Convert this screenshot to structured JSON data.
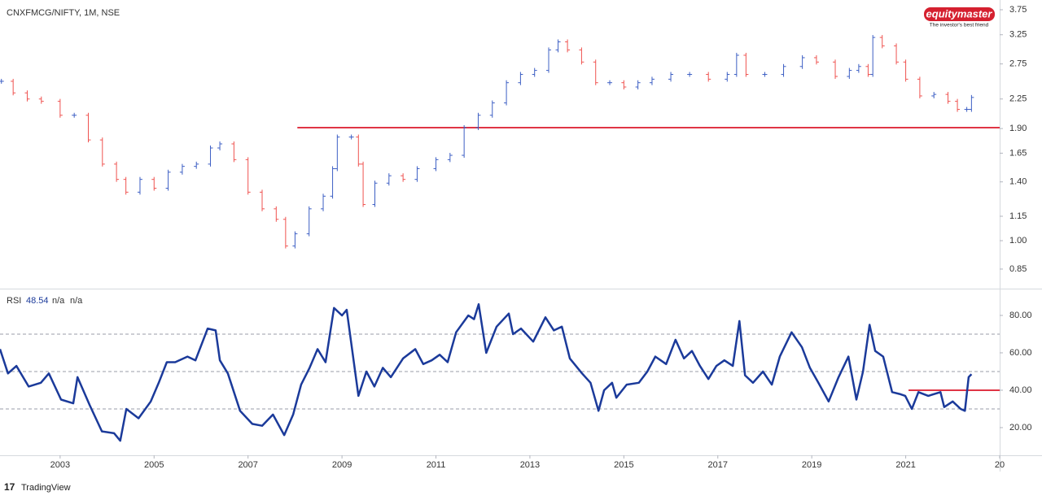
{
  "chart_data": [
    {
      "type": "ohlc",
      "title": "CNXFMCG/NIFTY, 1M, NSE",
      "log": true,
      "ylim": [
        0.76,
        3.965
      ],
      "yticks": [
        3.75,
        3.25,
        2.75,
        2.25,
        {
          "value": 1.9,
          "label": "1.90"
        },
        1.65,
        {
          "value": 1.4,
          "label": "1.40"
        },
        1.15,
        {
          "value": 1.0,
          "label": "1.00"
        },
        0.85
      ],
      "xlim": [
        2001.72,
        2023.0
      ],
      "up_color": "#3d5fc4",
      "down_color": "#ef5350",
      "levels": [
        {
          "value": 1.91,
          "x_start": 2008.05,
          "color": "#e03545"
        }
      ],
      "series": [
        {
          "name": "CNXFMCG/NIFTY",
          "x": [
            2001.75,
            2002.0,
            2002.3,
            2002.6,
            2003.0,
            2003.3,
            2003.6,
            2003.9,
            2004.2,
            2004.4,
            2004.7,
            2005.0,
            2005.3,
            2005.6,
            2005.9,
            2006.2,
            2006.4,
            2006.7,
            2007.0,
            2007.3,
            2007.6,
            2007.8,
            2008.0,
            2008.3,
            2008.6,
            2008.8,
            2008.9,
            2009.2,
            2009.35,
            2009.45,
            2009.7,
            2010.0,
            2010.3,
            2010.6,
            2011.0,
            2011.3,
            2011.6,
            2011.9,
            2012.2,
            2012.5,
            2012.8,
            2013.1,
            2013.4,
            2013.6,
            2013.8,
            2014.1,
            2014.4,
            2014.7,
            2015.0,
            2015.3,
            2015.6,
            2016.0,
            2016.4,
            2016.8,
            2017.2,
            2017.4,
            2017.6,
            2018.0,
            2018.4,
            2018.8,
            2019.1,
            2019.5,
            2019.8,
            2020.0,
            2020.2,
            2020.3,
            2020.5,
            2020.8,
            2021.0,
            2021.3,
            2021.6,
            2021.9,
            2022.1,
            2022.3,
            2022.4
          ],
          "values": [
            2.49,
            2.33,
            2.25,
            2.22,
            2.05,
            2.05,
            1.78,
            1.55,
            1.42,
            1.32,
            1.42,
            1.35,
            1.48,
            1.53,
            1.55,
            1.7,
            1.74,
            1.59,
            1.32,
            1.2,
            1.13,
            0.97,
            1.04,
            1.2,
            1.29,
            1.51,
            1.81,
            1.81,
            1.55,
            1.23,
            1.39,
            1.45,
            1.42,
            1.51,
            1.59,
            1.63,
            1.91,
            2.05,
            2.2,
            2.47,
            2.59,
            2.65,
            2.98,
            3.12,
            2.98,
            2.78,
            2.47,
            2.47,
            2.41,
            2.47,
            2.52,
            2.59,
            2.59,
            2.52,
            2.59,
            2.89,
            2.59,
            2.59,
            2.71,
            2.85,
            2.78,
            2.56,
            2.65,
            2.71,
            2.59,
            3.2,
            3.05,
            2.78,
            2.52,
            2.29,
            2.31,
            2.22,
            2.12,
            2.12,
            2.27
          ]
        }
      ]
    },
    {
      "type": "line",
      "title": "RSI",
      "legend_values": [
        48.54,
        "n/a",
        "n/a"
      ],
      "ylim": [
        5.2,
        93.9
      ],
      "yticks": [
        {
          "value": 80,
          "label": "80.00"
        },
        {
          "value": 60,
          "label": "60.00"
        },
        {
          "value": 40,
          "label": "40.00"
        },
        {
          "value": 20,
          "label": "20.00"
        }
      ],
      "hlines": [
        70,
        50,
        30
      ],
      "xlim": [
        2001.72,
        2023.0
      ],
      "xticks": [
        2003,
        2005,
        2007,
        2009,
        2011,
        2013,
        2015,
        2017,
        2019,
        2021,
        {
          "value": 2023,
          "label": "20"
        }
      ],
      "levels": [
        {
          "value": 40,
          "x_start": 2021.06,
          "color": "#e03545"
        }
      ],
      "series": [
        {
          "name": "RSI",
          "color": "#1b3a9a",
          "x": [
            2001.72,
            2001.89,
            2002.07,
            2002.33,
            2002.59,
            2002.76,
            2003.02,
            2003.28,
            2003.37,
            2003.63,
            2003.89,
            2004.15,
            2004.28,
            2004.41,
            2004.67,
            2004.93,
            2005.1,
            2005.27,
            2005.45,
            2005.71,
            2005.88,
            2006.14,
            2006.31,
            2006.4,
            2006.57,
            2006.83,
            2007.09,
            2007.3,
            2007.53,
            2007.77,
            2007.96,
            2008.13,
            2008.31,
            2008.48,
            2008.65,
            2008.83,
            2009.0,
            2009.1,
            2009.35,
            2009.52,
            2009.69,
            2009.87,
            2010.04,
            2010.3,
            2010.56,
            2010.73,
            2010.91,
            2011.08,
            2011.25,
            2011.43,
            2011.69,
            2011.81,
            2011.91,
            2012.07,
            2012.29,
            2012.55,
            2012.64,
            2012.81,
            2013.07,
            2013.33,
            2013.51,
            2013.68,
            2013.85,
            2014.11,
            2014.29,
            2014.46,
            2014.58,
            2014.75,
            2014.84,
            2015.06,
            2015.32,
            2015.5,
            2015.67,
            2015.9,
            2016.1,
            2016.28,
            2016.45,
            2016.62,
            2016.8,
            2016.97,
            2017.14,
            2017.32,
            2017.46,
            2017.58,
            2017.75,
            2017.96,
            2018.15,
            2018.32,
            2018.57,
            2018.79,
            2018.96,
            2019.14,
            2019.36,
            2019.57,
            2019.78,
            2019.95,
            2020.09,
            2020.23,
            2020.35,
            2020.52,
            2020.71,
            2020.87,
            2020.99,
            2021.13,
            2021.27,
            2021.48,
            2021.74,
            2021.82,
            2022.0,
            2022.17,
            2022.26,
            2022.34,
            2022.4
          ],
          "values": [
            62,
            49,
            53,
            42,
            44,
            49,
            35,
            33,
            47,
            32,
            18,
            17,
            13,
            30,
            25,
            34,
            44,
            55,
            55,
            58,
            56,
            73,
            72,
            56,
            49,
            29,
            22,
            21,
            27,
            16,
            27,
            43,
            52,
            62,
            55,
            84,
            80,
            83,
            37,
            50,
            42,
            52,
            47,
            57,
            62,
            54,
            56,
            59,
            55,
            71,
            80,
            78,
            86,
            60,
            74,
            81,
            70,
            73,
            66,
            79,
            72,
            74,
            57,
            49,
            44,
            29,
            40,
            44,
            36,
            43,
            44,
            50,
            58,
            54,
            67,
            57,
            61,
            53,
            46,
            53,
            56,
            53,
            77,
            48,
            44,
            50,
            43,
            58,
            71,
            63,
            52,
            44,
            34,
            47,
            58,
            35,
            50,
            75,
            61,
            58,
            39,
            38,
            37,
            30,
            39,
            37,
            39,
            31,
            34,
            30,
            29,
            47,
            48.54
          ]
        }
      ]
    }
  ],
  "branding": {
    "logo": "equitymaster",
    "tagline": "The investor's best friend"
  },
  "footer": "TradingView"
}
